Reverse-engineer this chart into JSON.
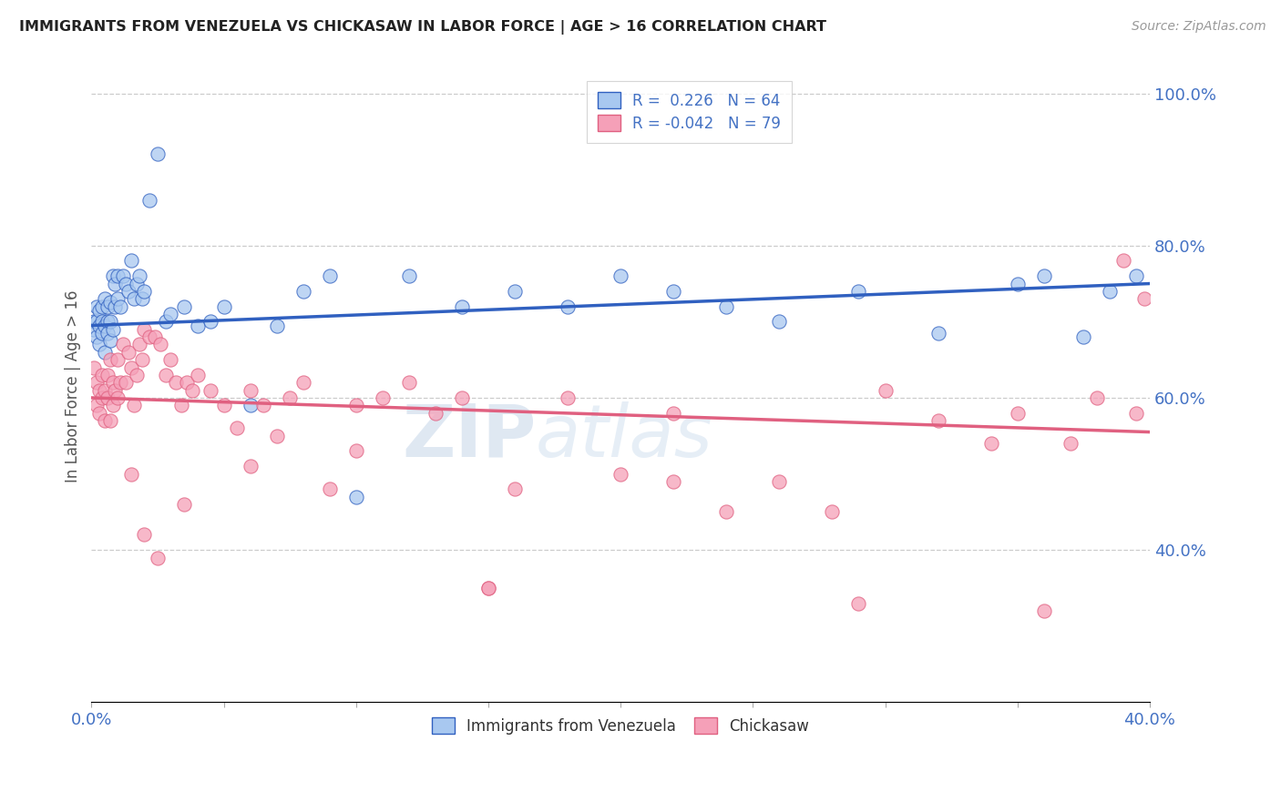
{
  "title": "IMMIGRANTS FROM VENEZUELA VS CHICKASAW IN LABOR FORCE | AGE > 16 CORRELATION CHART",
  "source": "Source: ZipAtlas.com",
  "ylabel": "In Labor Force | Age > 16",
  "xlim": [
    0.0,
    0.4
  ],
  "ylim": [
    0.2,
    1.03
  ],
  "xticks": [
    0.0,
    0.05,
    0.1,
    0.15,
    0.2,
    0.25,
    0.3,
    0.35,
    0.4
  ],
  "yticks_right": [
    0.4,
    0.6,
    0.8,
    1.0
  ],
  "ytickslabels_right": [
    "40.0%",
    "60.0%",
    "80.0%",
    "100.0%"
  ],
  "blue_color": "#a8c8f0",
  "pink_color": "#f5a0b8",
  "blue_line_color": "#3060c0",
  "pink_line_color": "#e06080",
  "legend_R1": "R =  0.226",
  "legend_N1": "N = 64",
  "legend_R2": "R = -0.042",
  "legend_N2": "N = 79",
  "watermark": "ZIPatlas",
  "legend1_label": "Immigrants from Venezuela",
  "legend2_label": "Chickasaw",
  "blue_line_y0": 0.695,
  "blue_line_y1": 0.75,
  "pink_line_y0": 0.6,
  "pink_line_y1": 0.555,
  "blue_dots_x": [
    0.001,
    0.001,
    0.002,
    0.002,
    0.002,
    0.003,
    0.003,
    0.003,
    0.004,
    0.004,
    0.004,
    0.005,
    0.005,
    0.005,
    0.006,
    0.006,
    0.006,
    0.007,
    0.007,
    0.007,
    0.008,
    0.008,
    0.009,
    0.009,
    0.01,
    0.01,
    0.011,
    0.012,
    0.013,
    0.014,
    0.015,
    0.016,
    0.017,
    0.018,
    0.019,
    0.02,
    0.022,
    0.025,
    0.028,
    0.03,
    0.035,
    0.04,
    0.045,
    0.05,
    0.06,
    0.07,
    0.08,
    0.09,
    0.1,
    0.12,
    0.14,
    0.16,
    0.18,
    0.2,
    0.22,
    0.24,
    0.26,
    0.29,
    0.32,
    0.35,
    0.36,
    0.375,
    0.385,
    0.395
  ],
  "blue_dots_y": [
    0.7,
    0.69,
    0.72,
    0.7,
    0.68,
    0.715,
    0.695,
    0.67,
    0.72,
    0.7,
    0.685,
    0.73,
    0.695,
    0.66,
    0.72,
    0.7,
    0.685,
    0.725,
    0.7,
    0.675,
    0.76,
    0.69,
    0.75,
    0.72,
    0.76,
    0.73,
    0.72,
    0.76,
    0.75,
    0.74,
    0.78,
    0.73,
    0.75,
    0.76,
    0.73,
    0.74,
    0.86,
    0.92,
    0.7,
    0.71,
    0.72,
    0.695,
    0.7,
    0.72,
    0.59,
    0.695,
    0.74,
    0.76,
    0.47,
    0.76,
    0.72,
    0.74,
    0.72,
    0.76,
    0.74,
    0.72,
    0.7,
    0.74,
    0.685,
    0.75,
    0.76,
    0.68,
    0.74,
    0.76
  ],
  "pink_dots_x": [
    0.001,
    0.002,
    0.002,
    0.003,
    0.003,
    0.004,
    0.004,
    0.005,
    0.005,
    0.006,
    0.006,
    0.007,
    0.007,
    0.008,
    0.008,
    0.009,
    0.01,
    0.01,
    0.011,
    0.012,
    0.013,
    0.014,
    0.015,
    0.016,
    0.017,
    0.018,
    0.019,
    0.02,
    0.022,
    0.024,
    0.026,
    0.028,
    0.03,
    0.032,
    0.034,
    0.036,
    0.038,
    0.04,
    0.045,
    0.05,
    0.055,
    0.06,
    0.065,
    0.07,
    0.075,
    0.08,
    0.09,
    0.1,
    0.11,
    0.12,
    0.13,
    0.14,
    0.15,
    0.16,
    0.18,
    0.2,
    0.22,
    0.24,
    0.26,
    0.28,
    0.3,
    0.32,
    0.34,
    0.35,
    0.36,
    0.37,
    0.38,
    0.39,
    0.395,
    0.398,
    0.015,
    0.02,
    0.025,
    0.035,
    0.06,
    0.1,
    0.15,
    0.22,
    0.29
  ],
  "pink_dots_y": [
    0.64,
    0.62,
    0.59,
    0.61,
    0.58,
    0.63,
    0.6,
    0.61,
    0.57,
    0.63,
    0.6,
    0.57,
    0.65,
    0.62,
    0.59,
    0.61,
    0.65,
    0.6,
    0.62,
    0.67,
    0.62,
    0.66,
    0.64,
    0.59,
    0.63,
    0.67,
    0.65,
    0.69,
    0.68,
    0.68,
    0.67,
    0.63,
    0.65,
    0.62,
    0.59,
    0.62,
    0.61,
    0.63,
    0.61,
    0.59,
    0.56,
    0.61,
    0.59,
    0.55,
    0.6,
    0.62,
    0.48,
    0.59,
    0.6,
    0.62,
    0.58,
    0.6,
    0.35,
    0.48,
    0.6,
    0.5,
    0.58,
    0.45,
    0.49,
    0.45,
    0.61,
    0.57,
    0.54,
    0.58,
    0.32,
    0.54,
    0.6,
    0.78,
    0.58,
    0.73,
    0.5,
    0.42,
    0.39,
    0.46,
    0.51,
    0.53,
    0.35,
    0.49,
    0.33
  ]
}
